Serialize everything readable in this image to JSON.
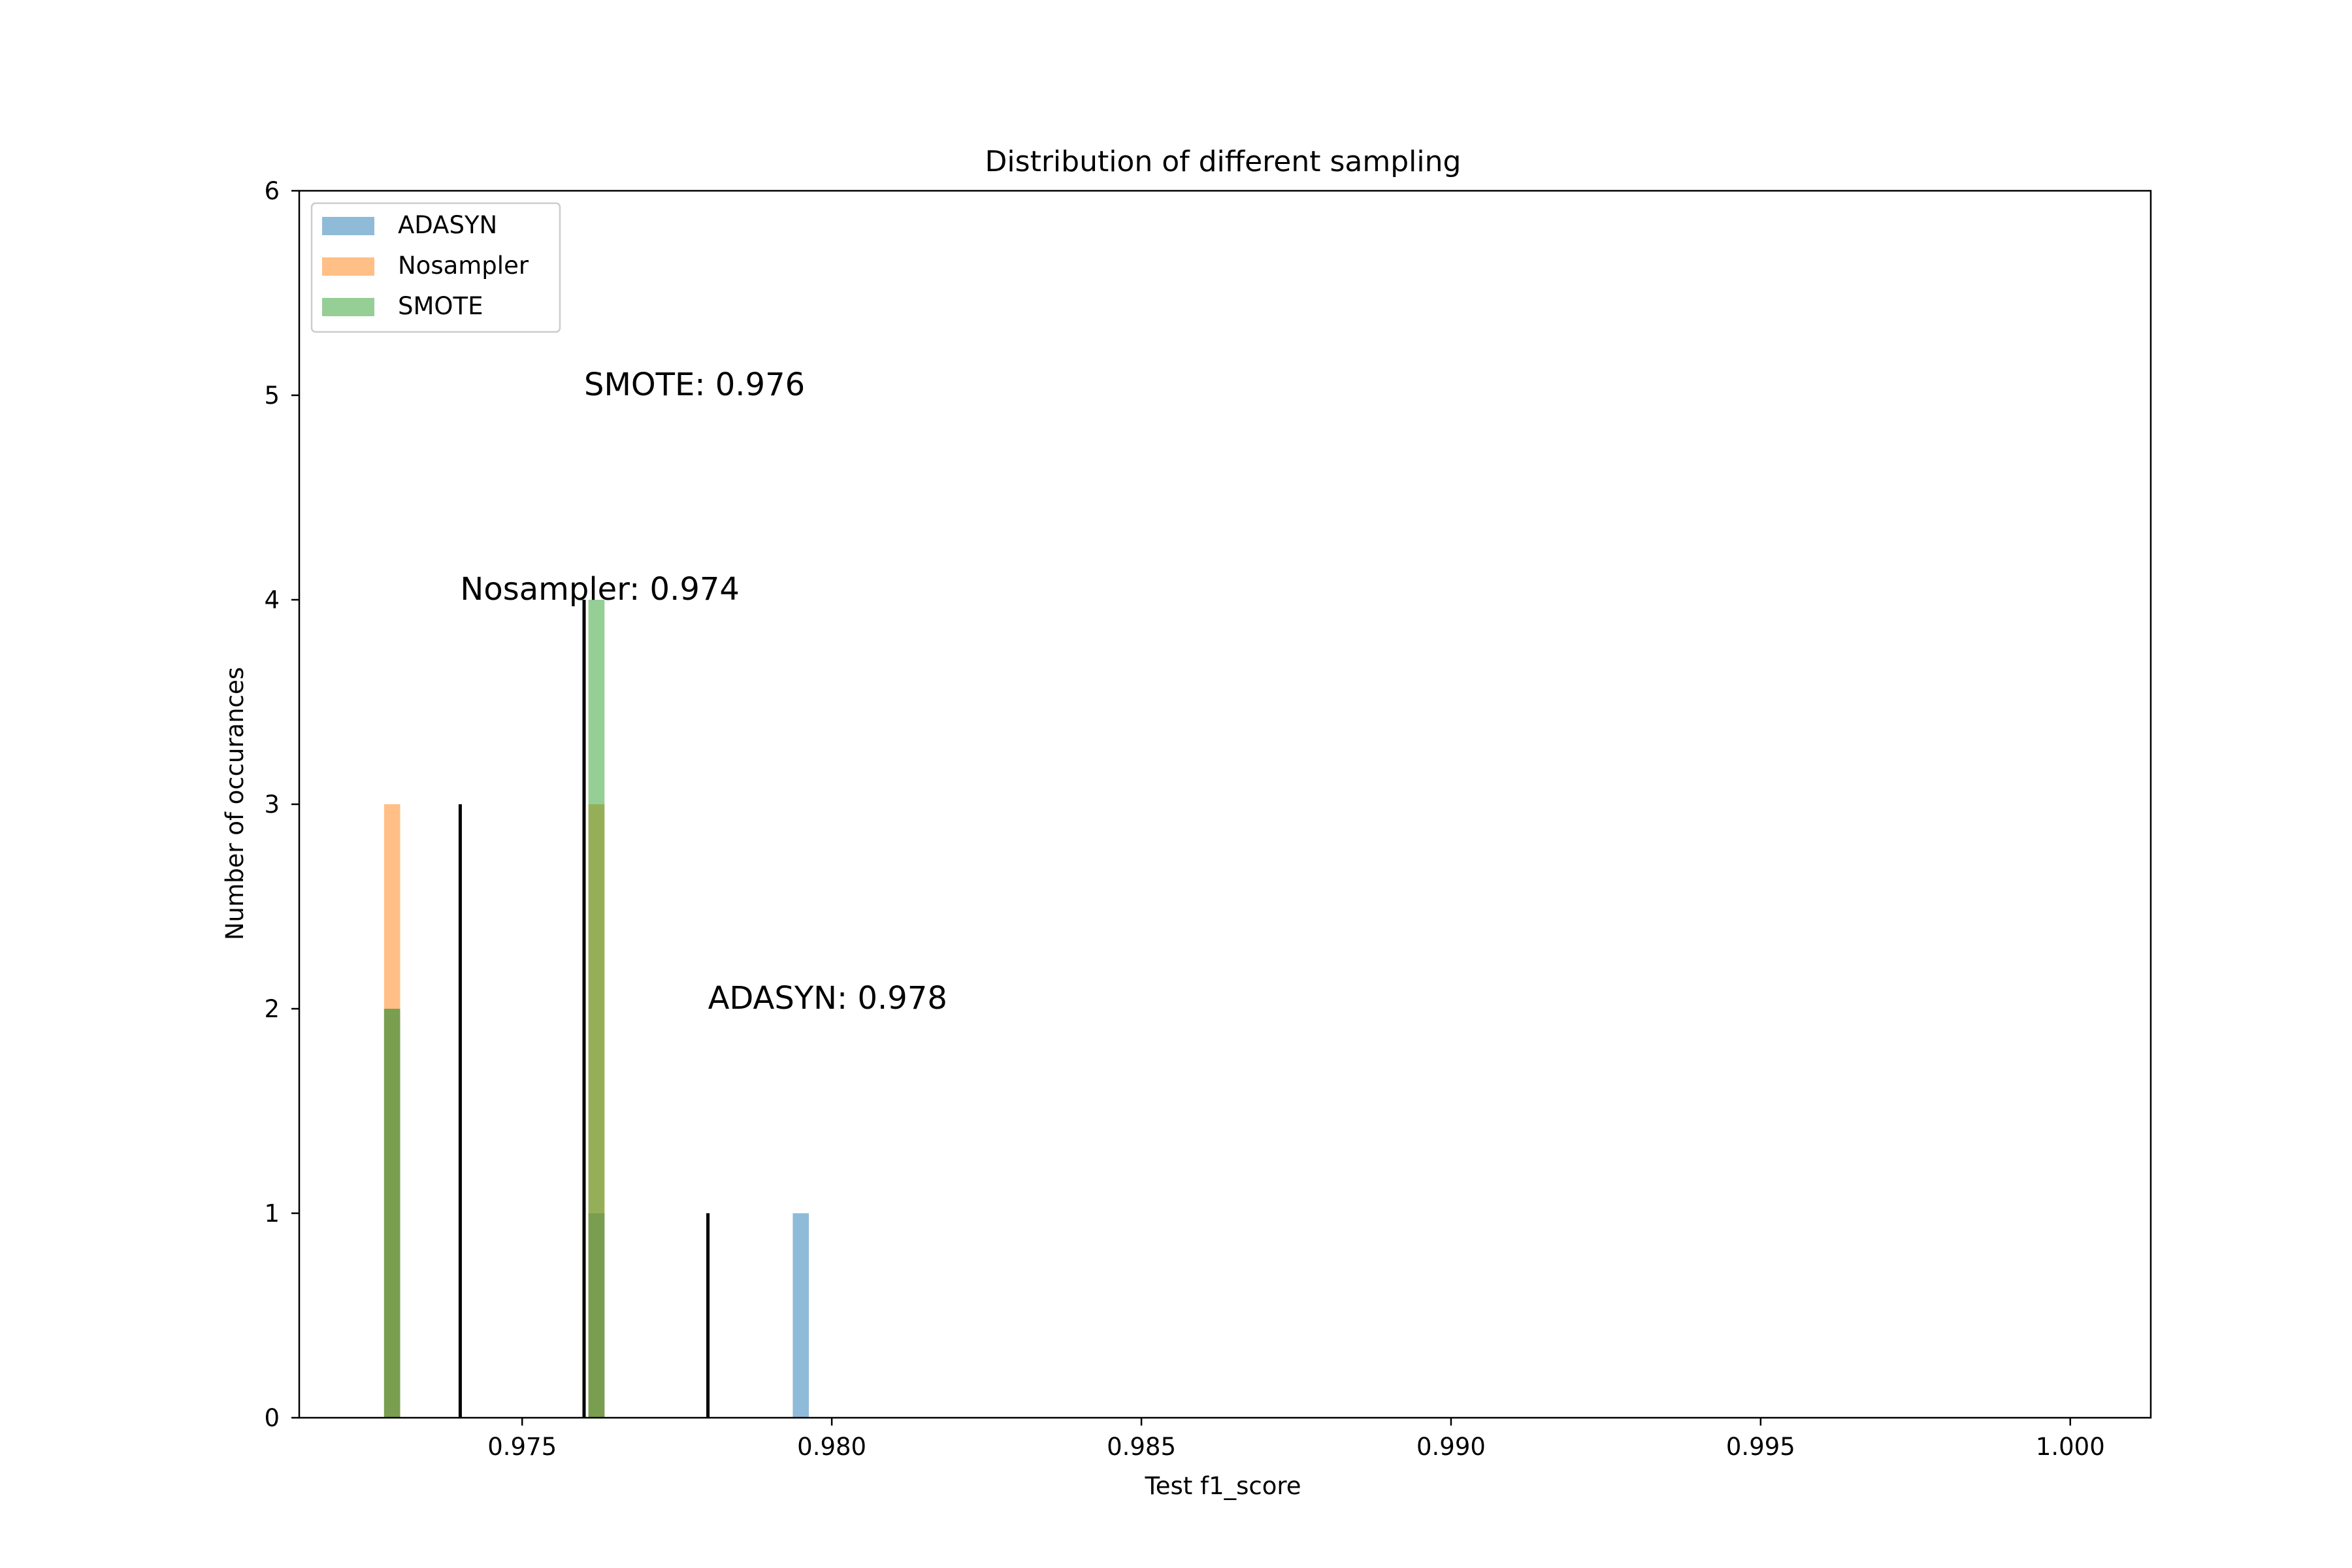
{
  "chart_data": {
    "type": "bar",
    "title": "Distribution of different sampling",
    "xlabel": "Test f1_score",
    "ylabel": "Number of occurances",
    "xlim": [
      0.9714,
      1.0013
    ],
    "ylim": [
      0,
      6
    ],
    "xticks": [
      "0.975",
      "0.980",
      "0.985",
      "0.990",
      "0.995",
      "1.000"
    ],
    "yticks": [
      "0",
      "1",
      "2",
      "3",
      "4",
      "5",
      "6"
    ],
    "grid": false,
    "legend_position": "top-left",
    "bin_width": 0.00026,
    "series": [
      {
        "name": "ADASYN",
        "color": "#1f77b4",
        "bars": [
          {
            "x": 0.9729,
            "count": 2
          },
          {
            "x": 0.9762,
            "count": 1
          },
          {
            "x": 0.9795,
            "count": 1
          }
        ]
      },
      {
        "name": "Nosampler",
        "color": "#ff7f0e",
        "bars": [
          {
            "x": 0.9729,
            "count": 3
          },
          {
            "x": 0.9762,
            "count": 3
          }
        ]
      },
      {
        "name": "SMOTE",
        "color": "#2ca02c",
        "bars": [
          {
            "x": 0.9729,
            "count": 2
          },
          {
            "x": 0.9762,
            "count": 4
          }
        ]
      }
    ],
    "mean_lines": [
      {
        "x": 0.974,
        "height": 3
      },
      {
        "x": 0.976,
        "height": 4
      },
      {
        "x": 0.978,
        "height": 1
      }
    ],
    "annotations": [
      {
        "text": "SMOTE: 0.976",
        "x": 0.976,
        "y": 5
      },
      {
        "text": "Nosampler: 0.974",
        "x": 0.974,
        "y": 4
      },
      {
        "text": "ADASYN: 0.978",
        "x": 0.978,
        "y": 2
      }
    ]
  }
}
